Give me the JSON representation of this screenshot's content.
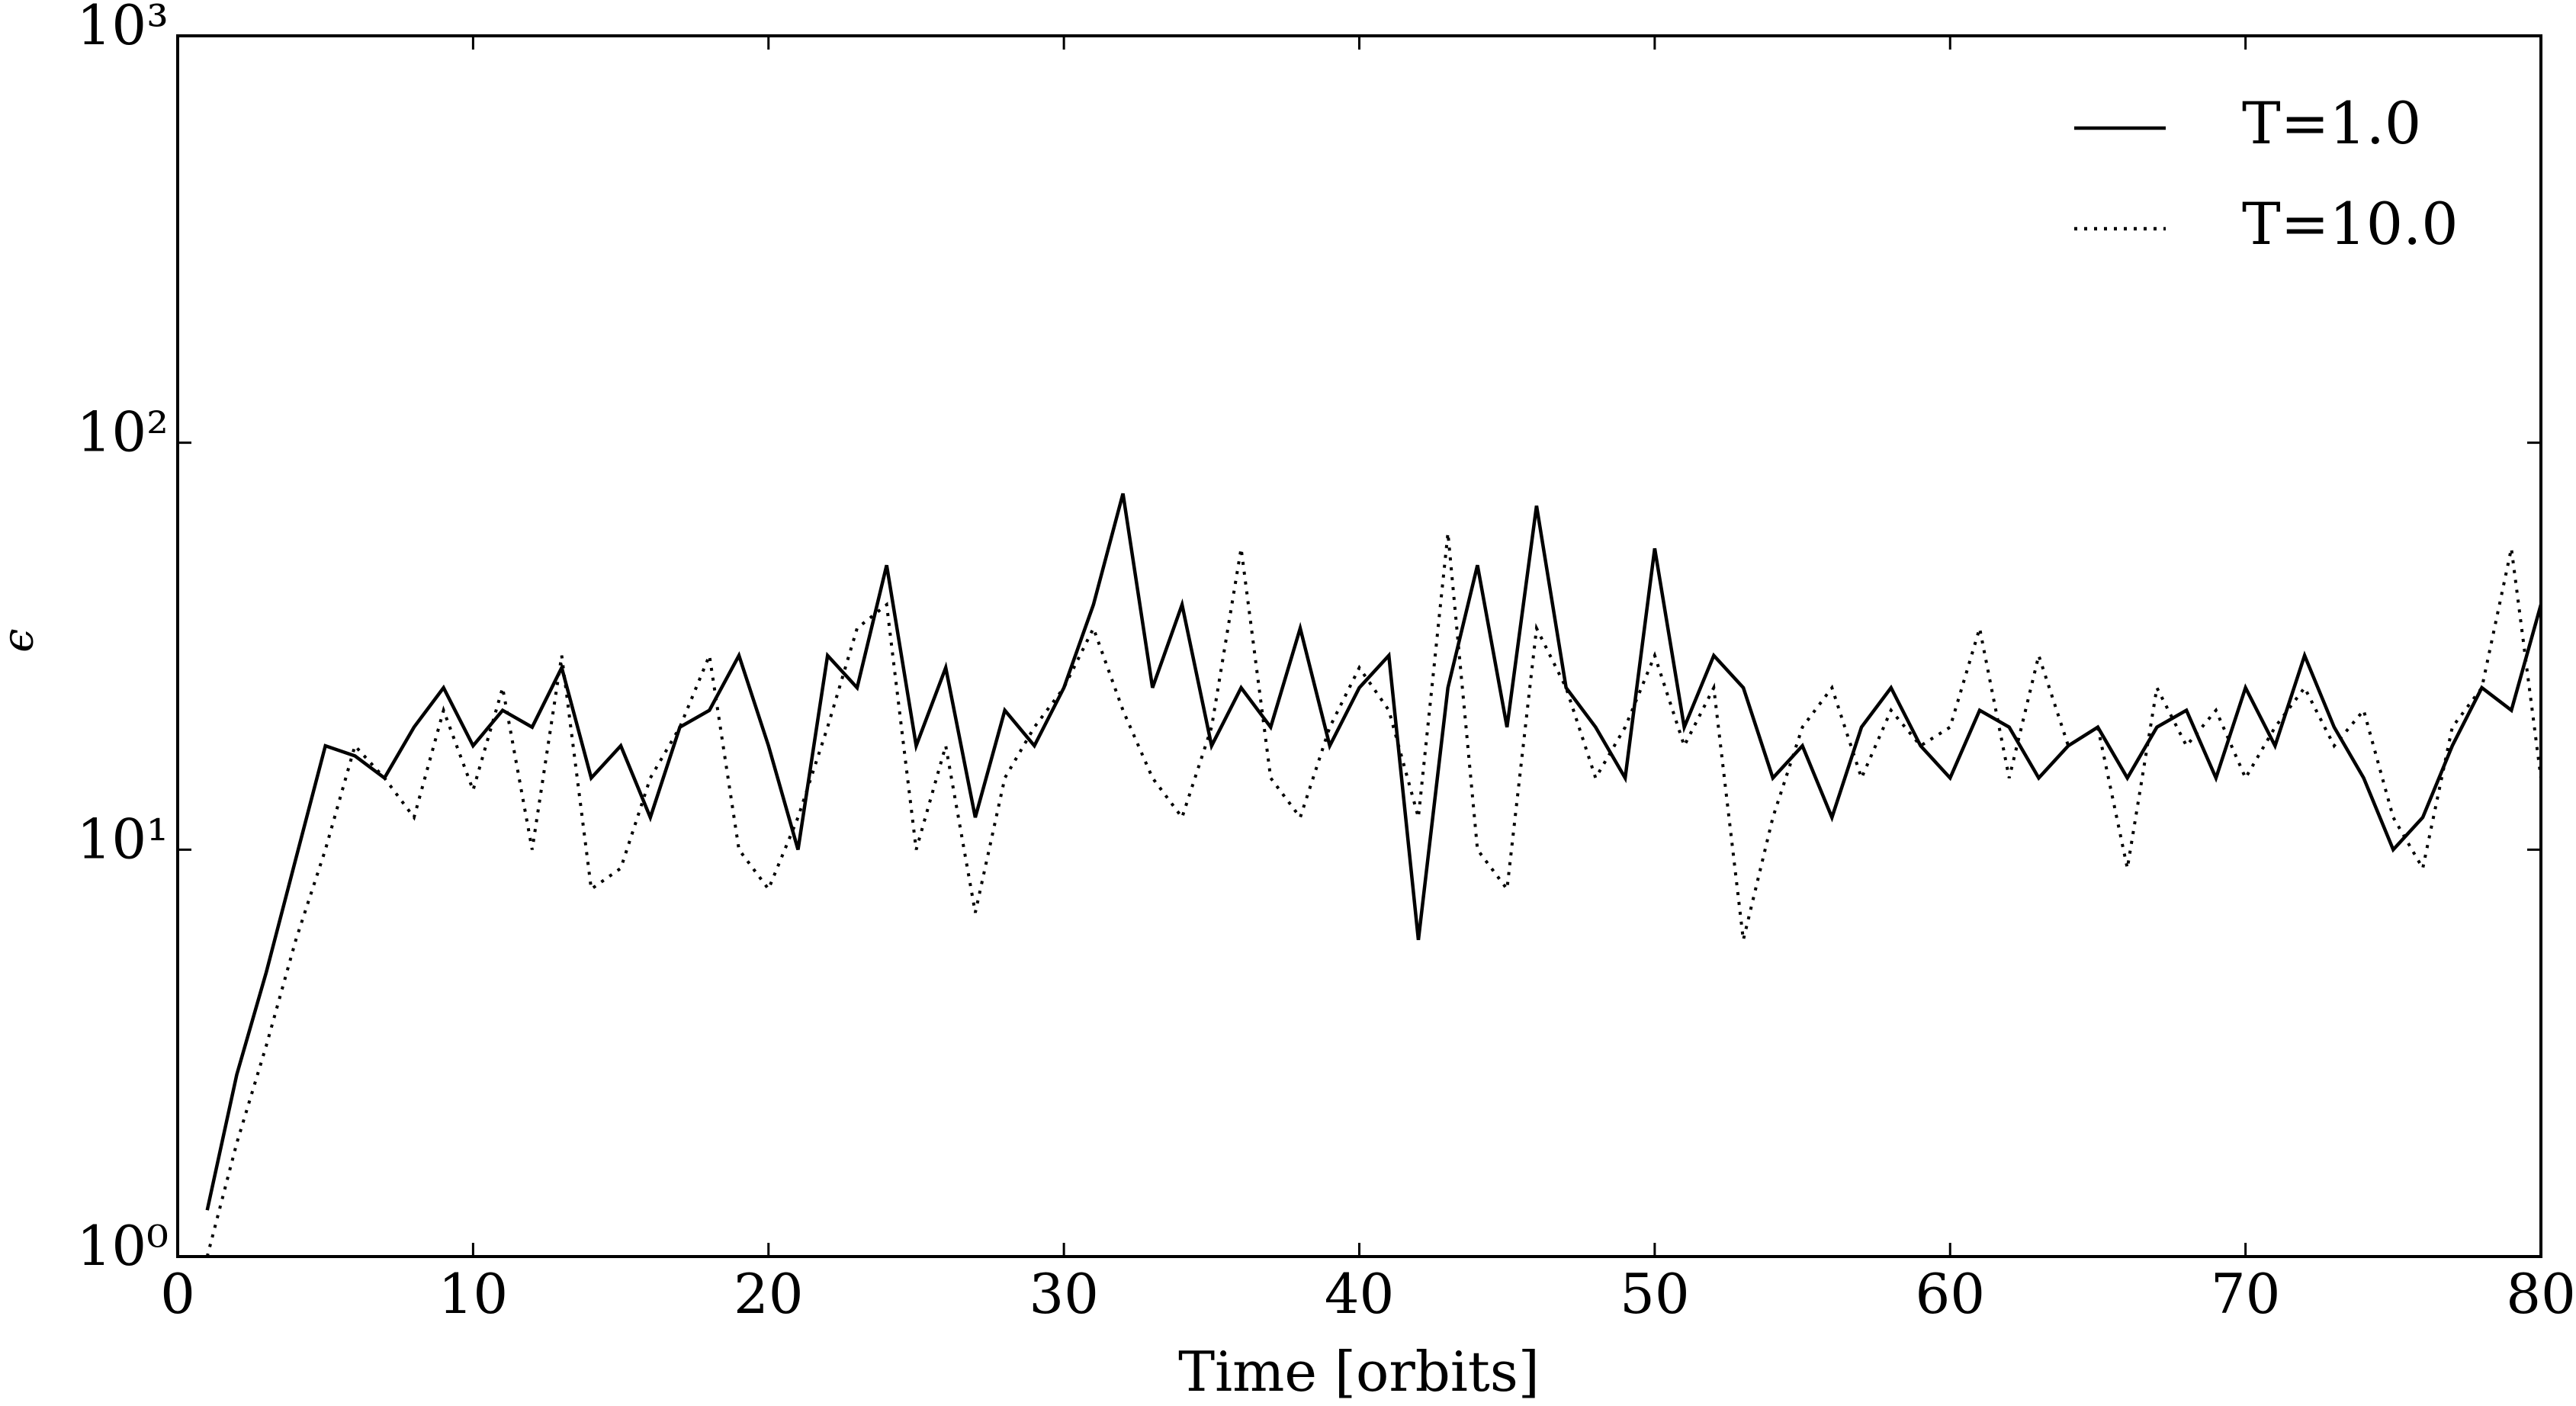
{
  "chart_data": {
    "type": "line",
    "x_label": "Time [orbits]",
    "y_label": "ϵ",
    "x": [
      1,
      2,
      3,
      4,
      5,
      6,
      7,
      8,
      9,
      10,
      11,
      12,
      13,
      14,
      15,
      16,
      17,
      18,
      19,
      20,
      21,
      22,
      23,
      24,
      25,
      26,
      27,
      28,
      29,
      30,
      31,
      32,
      33,
      34,
      35,
      36,
      37,
      38,
      39,
      40,
      41,
      42,
      43,
      44,
      45,
      46,
      47,
      48,
      49,
      50,
      51,
      52,
      53,
      54,
      55,
      56,
      57,
      58,
      59,
      60,
      61,
      62,
      63,
      64,
      65,
      66,
      67,
      68,
      69,
      70,
      71,
      72,
      73,
      74,
      75,
      76,
      77,
      78,
      79,
      80
    ],
    "series": [
      {
        "name": "T=1.0",
        "color": "#000000",
        "linestyle": "solid",
        "values": [
          1.3,
          2.8,
          5,
          9.5,
          18,
          17,
          15,
          20,
          25,
          18,
          22,
          20,
          28,
          15,
          18,
          12,
          20,
          22,
          30,
          18,
          10,
          30,
          25,
          50,
          18,
          28,
          12,
          22,
          18,
          25,
          40,
          75,
          25,
          40,
          18,
          25,
          20,
          35,
          18,
          25,
          30,
          6,
          25,
          50,
          20,
          70,
          25,
          20,
          15,
          55,
          20,
          30,
          25,
          15,
          18,
          12,
          20,
          25,
          18,
          15,
          22,
          20,
          15,
          18,
          20,
          15,
          20,
          22,
          15,
          25,
          18,
          30,
          20,
          15,
          10,
          12,
          18,
          25,
          22,
          40
        ]
      },
      {
        "name": "T=10.0",
        "color": "#000000",
        "linestyle": "dotted",
        "values": [
          1.0,
          1.9,
          3.3,
          6,
          10,
          18,
          15,
          12,
          22,
          14,
          25,
          10,
          30,
          8,
          9,
          15,
          20,
          30,
          10,
          8,
          12,
          20,
          35,
          40,
          10,
          18,
          7,
          15,
          20,
          25,
          35,
          22,
          15,
          12,
          20,
          55,
          15,
          12,
          20,
          28,
          22,
          12,
          60,
          10,
          8,
          35,
          25,
          15,
          20,
          30,
          18,
          25,
          6,
          12,
          20,
          25,
          15,
          22,
          18,
          20,
          35,
          15,
          30,
          18,
          20,
          9,
          25,
          18,
          22,
          15,
          20,
          25,
          18,
          22,
          12,
          9,
          20,
          25,
          55,
          15
        ]
      }
    ],
    "xlim": [
      0,
      80
    ],
    "xticks": [
      0,
      10,
      20,
      30,
      40,
      50,
      60,
      70,
      80
    ],
    "ylim": [
      1,
      1000
    ],
    "yscale": "log",
    "yticks": [
      {
        "value": 1,
        "label": "10⁰"
      },
      {
        "value": 10,
        "label": "10¹"
      },
      {
        "value": 100,
        "label": "10²"
      },
      {
        "value": 1000,
        "label": "10³"
      }
    ],
    "legend": "upper right"
  }
}
